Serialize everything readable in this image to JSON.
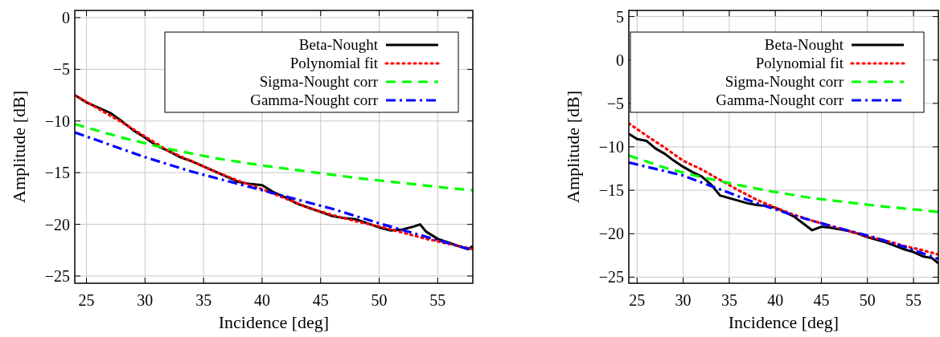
{
  "chart_data": [
    {
      "type": "line",
      "xlabel": "Incidence [deg]",
      "ylabel": "Amplitude [dB]",
      "xlim": [
        24,
        58
      ],
      "ylim": [
        -25.7,
        0.7
      ],
      "xticks": [
        25,
        30,
        35,
        40,
        45,
        50,
        55
      ],
      "yticks": [
        -25,
        -20,
        -15,
        -10,
        -5,
        0
      ],
      "grid": true,
      "legend": "top right",
      "series": [
        {
          "name": "Beta-Nought",
          "color": "#000000",
          "line_style": "solid",
          "x": [
            24,
            25,
            26,
            27,
            28,
            29,
            30,
            31,
            32,
            33,
            34,
            35,
            36,
            37,
            38,
            39,
            40,
            41,
            42,
            43,
            44,
            45,
            46,
            47,
            48,
            49,
            50,
            51,
            52,
            53,
            53.5,
            54,
            55,
            56,
            57,
            57.6,
            58
          ],
          "values": [
            -7.5,
            -8.2,
            -8.7,
            -9.2,
            -10.0,
            -10.9,
            -11.6,
            -12.4,
            -12.9,
            -13.5,
            -13.9,
            -14.4,
            -14.9,
            -15.4,
            -15.9,
            -16.1,
            -16.2,
            -16.9,
            -17.4,
            -18.0,
            -18.4,
            -18.8,
            -19.2,
            -19.4,
            -19.5,
            -19.9,
            -20.3,
            -20.6,
            -20.5,
            -20.2,
            -20.0,
            -20.7,
            -21.4,
            -21.8,
            -22.2,
            -22.4,
            -22.1
          ]
        },
        {
          "name": "Polynomial fit",
          "color": "#ff0000",
          "line_style": "dotted",
          "x": [
            24,
            26,
            28,
            30,
            32,
            34,
            36,
            38,
            40,
            42,
            44,
            46,
            48,
            50,
            52,
            54,
            56,
            58
          ],
          "values": [
            -7.5,
            -8.8,
            -10.1,
            -11.5,
            -12.9,
            -13.9,
            -14.9,
            -15.8,
            -16.6,
            -17.5,
            -18.4,
            -19.1,
            -19.7,
            -20.2,
            -20.8,
            -21.4,
            -21.9,
            -22.4
          ]
        },
        {
          "name": "Sigma-Nought corr",
          "color": "#00ff00",
          "line_style": "dashed",
          "x": [
            24,
            28,
            32,
            36,
            40,
            44,
            48,
            52,
            56,
            58
          ],
          "values": [
            -10.3,
            -11.6,
            -12.7,
            -13.6,
            -14.3,
            -14.9,
            -15.5,
            -16.0,
            -16.5,
            -16.7
          ]
        },
        {
          "name": "Gamma-Nought corr",
          "color": "#0000ff",
          "line_style": "dashdot",
          "x": [
            24,
            30,
            34,
            38,
            42,
            46,
            50,
            54,
            58
          ],
          "values": [
            -11.1,
            -13.5,
            -14.9,
            -16.1,
            -17.3,
            -18.5,
            -19.9,
            -21.2,
            -22.5
          ]
        }
      ]
    },
    {
      "type": "line",
      "xlabel": "Incidence [deg]",
      "ylabel": "Amplitude [dB]",
      "xlim": [
        24.1,
        57.7
      ],
      "ylim": [
        -25.7,
        5.7
      ],
      "xticks": [
        25,
        30,
        35,
        40,
        45,
        50,
        55
      ],
      "yticks": [
        -25,
        -20,
        -15,
        -10,
        -5,
        0,
        5
      ],
      "grid": true,
      "legend": "top right",
      "series": [
        {
          "name": "Beta-Nought",
          "color": "#000000",
          "line_style": "solid",
          "x": [
            24.1,
            25,
            26,
            27,
            28,
            29,
            30,
            31,
            32,
            33,
            34,
            35,
            36,
            37,
            38,
            39,
            40,
            41,
            42,
            43,
            44,
            45,
            46,
            47,
            48,
            49,
            50,
            51,
            52,
            53,
            54,
            55,
            56,
            57,
            57.7
          ],
          "values": [
            -8.5,
            -9.1,
            -9.3,
            -10.2,
            -10.8,
            -11.6,
            -12.3,
            -12.9,
            -13.4,
            -14.3,
            -15.6,
            -15.9,
            -16.2,
            -16.5,
            -16.7,
            -16.8,
            -17.0,
            -17.5,
            -18.0,
            -18.8,
            -19.6,
            -19.2,
            -19.3,
            -19.5,
            -19.7,
            -20.0,
            -20.4,
            -20.7,
            -21.0,
            -21.4,
            -21.8,
            -22.1,
            -22.6,
            -22.8,
            -23.4
          ]
        },
        {
          "name": "Polynomial fit",
          "color": "#ff0000",
          "line_style": "dotted",
          "x": [
            24.1,
            26,
            28,
            30,
            32,
            34,
            36,
            38,
            40,
            42,
            44,
            46,
            48,
            50,
            52,
            54,
            56,
            57.7
          ],
          "values": [
            -7.3,
            -8.7,
            -10.1,
            -11.6,
            -12.6,
            -13.8,
            -15.0,
            -16.1,
            -17.0,
            -17.8,
            -18.5,
            -19.1,
            -19.7,
            -20.3,
            -20.8,
            -21.4,
            -21.9,
            -22.4
          ]
        },
        {
          "name": "Sigma-Nought corr",
          "color": "#00ff00",
          "line_style": "dashed",
          "x": [
            24.1,
            28,
            32,
            36,
            40,
            44,
            48,
            52,
            56,
            57.7
          ],
          "values": [
            -11.0,
            -12.4,
            -13.5,
            -14.4,
            -15.2,
            -15.9,
            -16.4,
            -16.9,
            -17.3,
            -17.5
          ]
        },
        {
          "name": "Gamma-Nought corr",
          "color": "#0000ff",
          "line_style": "dashdot",
          "x": [
            24.1,
            30,
            34,
            38,
            42,
            46,
            50,
            54,
            57.7
          ],
          "values": [
            -11.8,
            -13.3,
            -14.9,
            -16.5,
            -17.9,
            -19.1,
            -20.2,
            -21.5,
            -22.9
          ]
        }
      ]
    }
  ]
}
